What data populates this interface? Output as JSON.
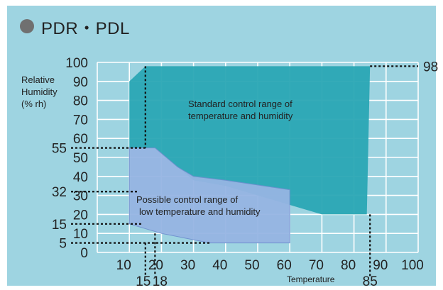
{
  "title": "PDR・PDL",
  "chart_data": {
    "type": "area",
    "title": "PDR・PDL",
    "xlabel": "Temperature",
    "ylabel_lines": [
      "Relative",
      "Humidity",
      "(% rh)"
    ],
    "xlim": [
      0,
      100
    ],
    "ylim": [
      0,
      100
    ],
    "x_ticks": [
      10,
      20,
      30,
      40,
      50,
      60,
      70,
      80,
      90,
      100
    ],
    "y_ticks": [
      0,
      10,
      20,
      30,
      40,
      50,
      60,
      70,
      80,
      90,
      100
    ],
    "grid": true,
    "regions": [
      {
        "name": "Standard control range of temperature and humidity",
        "label_lines": [
          "Standard control range of",
          "temperature and humidity"
        ],
        "color": "#2aa6b4",
        "points": [
          [
            10,
            90
          ],
          [
            15,
            98
          ],
          [
            85,
            98
          ],
          [
            84,
            20
          ],
          [
            70,
            20
          ],
          [
            60,
            25
          ],
          [
            40,
            35
          ],
          [
            30,
            38
          ],
          [
            18,
            55
          ],
          [
            15,
            55
          ],
          [
            10,
            55
          ]
        ]
      },
      {
        "name": "Possible control range of low temperature and humidity",
        "label_lines": [
          "Possible control range of",
          "low temperature and humidity"
        ],
        "color": "#96b5e3",
        "points": [
          [
            10,
            55
          ],
          [
            15,
            55
          ],
          [
            18,
            55
          ],
          [
            25,
            45
          ],
          [
            30,
            40
          ],
          [
            40,
            38
          ],
          [
            60,
            33
          ],
          [
            60,
            5
          ],
          [
            50,
            5
          ],
          [
            35,
            5
          ],
          [
            20,
            10
          ],
          [
            10,
            15
          ]
        ]
      }
    ],
    "annotations": {
      "y_marks": [
        {
          "value": 55,
          "label": "55"
        },
        {
          "value": 32,
          "label": "32"
        },
        {
          "value": 15,
          "label": "15"
        },
        {
          "value": 5,
          "label": "5"
        }
      ],
      "x_marks": [
        {
          "value": 15,
          "label": "15"
        },
        {
          "value": 18,
          "label": "18"
        },
        {
          "value": 85,
          "label": "85"
        }
      ],
      "top_mark": {
        "value": 98,
        "label": "98"
      }
    },
    "colors": {
      "background": "#9ed4e1",
      "grid": "#ffffff",
      "dotted": "#111111"
    }
  }
}
